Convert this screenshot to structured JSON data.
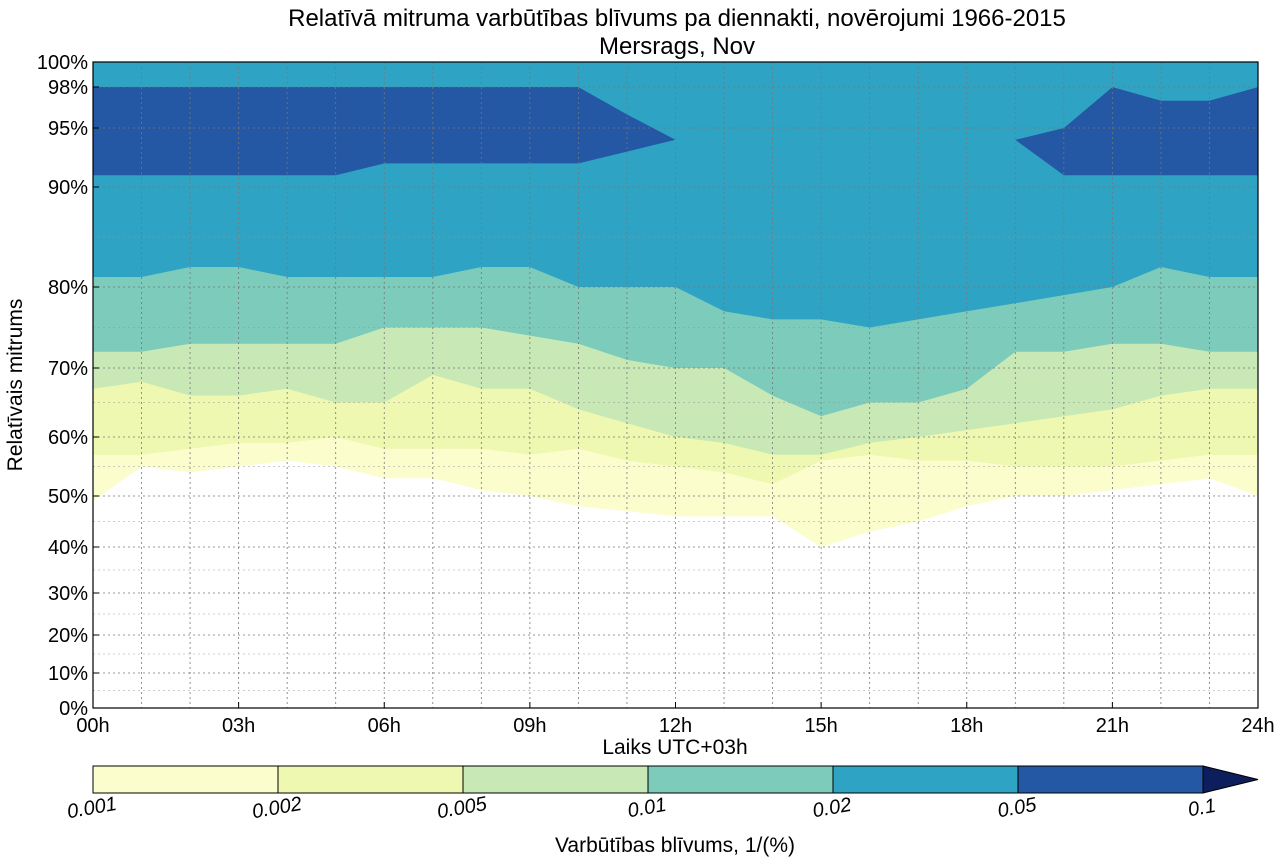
{
  "chart_data": {
    "type": "contour",
    "title": "Relatīvā mitruma varbūtības blīvums pa diennakti, novērojumi 1966-2015",
    "subtitle": "Mersrags, Nov",
    "xlabel": "Laiks UTC+03h",
    "ylabel": "Relatīvais mitrums",
    "x_ticks": [
      "00h",
      "03h",
      "06h",
      "09h",
      "12h",
      "15h",
      "18h",
      "21h",
      "24h"
    ],
    "x_range_hours": [
      0,
      24
    ],
    "y_ticks": [
      "0%",
      "10%",
      "20%",
      "30%",
      "40%",
      "50%",
      "60%",
      "70%",
      "80%",
      "90%",
      "95%",
      "98%",
      "100%"
    ],
    "y_tick_values": [
      0,
      10,
      20,
      30,
      40,
      50,
      60,
      70,
      80,
      90,
      95,
      98,
      100
    ],
    "grid": true,
    "colorbar": {
      "label": "Varbūtības blīvums, 1/(%)",
      "ticks": [
        "0.001",
        "0.002",
        "0.005",
        "0.01",
        "0.02",
        "0.05",
        "0.1"
      ],
      "levels": [
        0.001,
        0.002,
        0.005,
        0.01,
        0.02,
        0.05,
        0.1
      ],
      "colors": [
        "#fbfdcc",
        "#eff8b0",
        "#c8e9b5",
        "#7ccbbb",
        "#2fa3c3",
        "#2457a4",
        "#0d1e5c"
      ],
      "extend": "max"
    },
    "hours": [
      0,
      1,
      2,
      3,
      4,
      5,
      6,
      7,
      8,
      9,
      10,
      11,
      12,
      13,
      14,
      15,
      16,
      17,
      18,
      19,
      20,
      21,
      22,
      23,
      24
    ],
    "level_boundaries_rh": [
      {
        "level": 0.001,
        "lower": [
          49,
          55,
          54,
          55,
          56,
          55,
          53,
          53,
          51,
          50,
          48,
          47,
          46,
          46,
          46,
          40,
          43,
          45,
          48,
          50,
          50,
          51,
          52,
          53,
          50
        ]
      },
      {
        "level": 0.002,
        "lower": [
          57,
          57,
          58,
          59,
          59,
          60,
          58,
          58,
          58,
          57,
          58,
          56,
          55,
          54,
          52,
          56,
          57,
          56,
          56,
          55,
          55,
          55,
          56,
          57,
          57
        ]
      },
      {
        "level": 0.005,
        "lower": [
          67,
          68,
          66,
          66,
          67,
          65,
          65,
          69,
          67,
          67,
          64,
          62,
          60,
          59,
          57,
          57,
          59,
          60,
          61,
          62,
          63,
          64,
          66,
          67,
          67
        ]
      },
      {
        "level": 0.01,
        "lower": [
          72,
          72,
          73,
          73,
          73,
          73,
          75,
          75,
          75,
          74,
          73,
          71,
          70,
          70,
          66,
          63,
          65,
          65,
          67,
          72,
          72,
          73,
          73,
          72,
          72
        ]
      },
      {
        "level": 0.02,
        "lower": [
          81,
          81,
          82,
          82,
          81,
          81,
          81,
          81,
          82,
          82,
          80,
          80,
          80,
          77,
          76,
          76,
          75,
          76,
          77,
          78,
          79,
          80,
          82,
          81,
          81
        ]
      },
      {
        "level": 0.05,
        "lower": [
          91,
          91,
          91,
          91,
          91,
          91,
          92,
          92,
          92,
          92,
          92,
          93,
          94,
          94,
          94,
          94,
          94,
          94,
          94,
          94,
          91,
          91,
          91,
          91,
          91
        ],
        "upper": [
          98,
          98,
          98,
          98,
          98,
          98,
          98,
          98,
          98,
          98,
          98,
          96,
          94,
          94,
          94,
          94,
          94,
          94,
          94,
          94,
          95,
          98,
          97,
          97,
          98
        ]
      }
    ]
  }
}
